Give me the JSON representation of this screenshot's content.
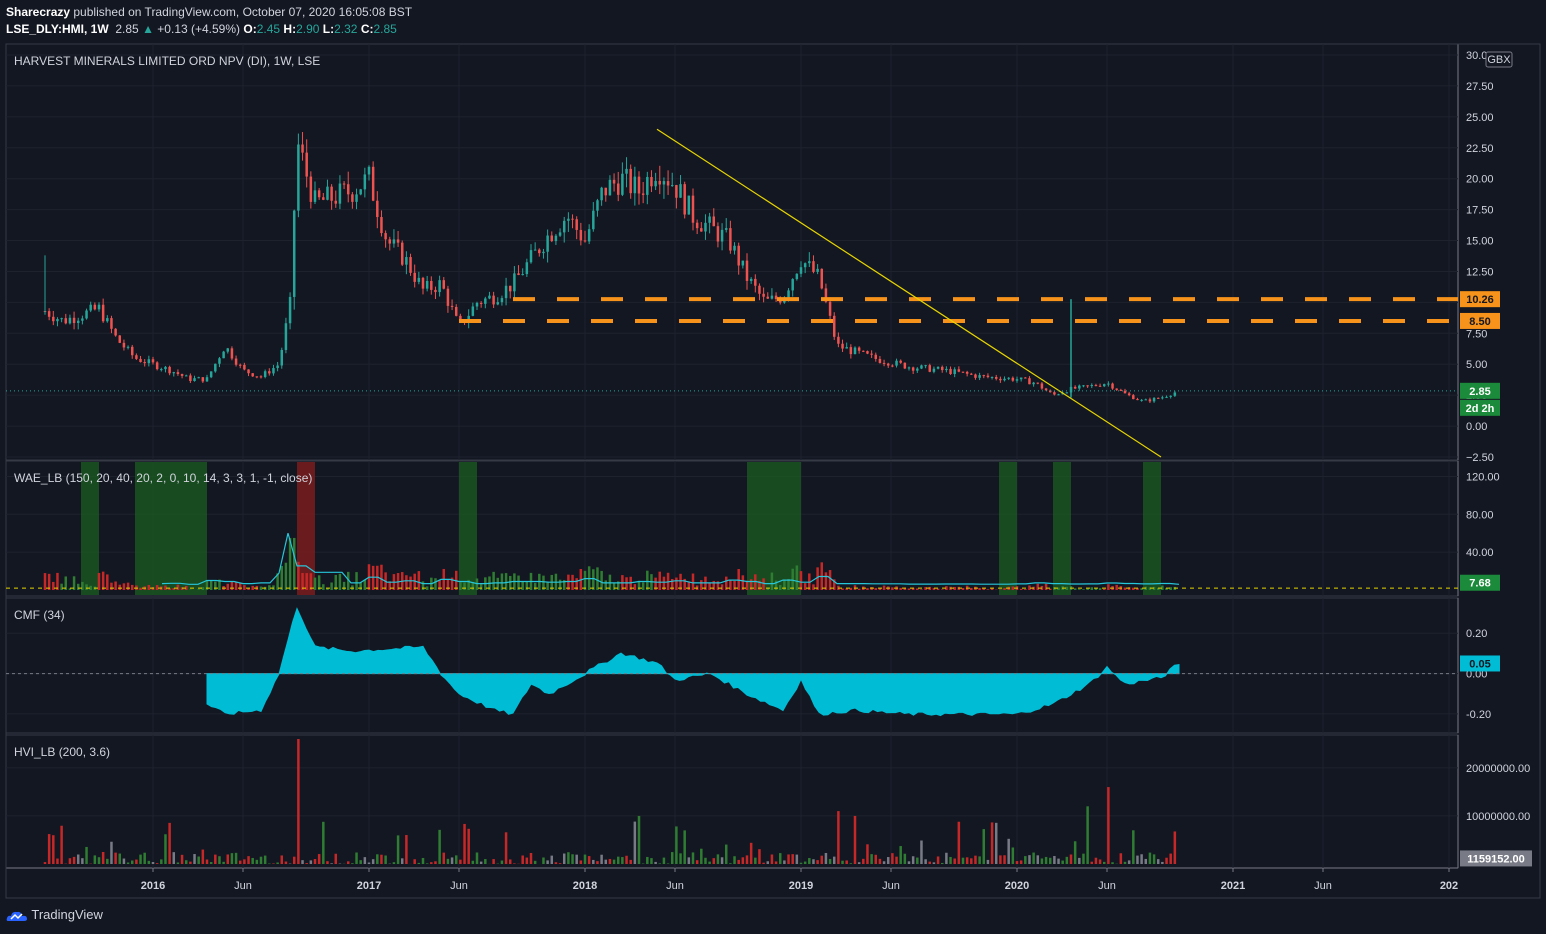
{
  "header": {
    "publisher": "Sharecrazy",
    "published_text": " published on TradingView.com, October 07, 2020 16:05:08 BST",
    "symbol": "LSE_DLY:HMI, 1W",
    "price": "2.85",
    "change": "+0.13 (+4.59%)",
    "o_label": "O:",
    "o_val": "2.45",
    "h_label": "H:",
    "h_val": "2.90",
    "l_label": "L:",
    "l_val": "2.32",
    "c_label": "C:",
    "c_val": "2.85"
  },
  "footer": {
    "brand": "TradingView"
  },
  "colors": {
    "background": "#131722",
    "up": "#26a69a",
    "down": "#ef5350",
    "trendline": "#e6d400",
    "level_line": "#f7931a",
    "cyan": "#00bcd4",
    "green_zone": "#1b5e20"
  },
  "chart_data": [
    {
      "type": "candlestick",
      "title": "HARVEST MINERALS LIMITED ORD NPV (DI), 1W, LSE",
      "currency": "GBX",
      "ylim": [
        -2.5,
        30
      ],
      "y_ticks": [
        "30.00",
        "27.50",
        "25.00",
        "22.50",
        "20.00",
        "17.50",
        "15.00",
        "12.50",
        "10.00",
        "7.50",
        "5.00",
        "2.50",
        "0.00",
        "−2.50"
      ],
      "x_ticks": [
        "2016",
        "Jun",
        "2017",
        "Jun",
        "2018",
        "Jun",
        "2019",
        "Jun",
        "2020",
        "Jun",
        "2021",
        "Jun",
        "202"
      ],
      "close_path": [
        [
          "2015-07",
          9.3
        ],
        [
          "2015-08",
          8.5
        ],
        [
          "2015-10",
          9.5
        ],
        [
          "2015-11",
          7.0
        ],
        [
          "2015-12",
          5.5
        ],
        [
          "2016-02",
          4.5
        ],
        [
          "2016-03",
          3.8
        ],
        [
          "2016-04",
          3.8
        ],
        [
          "2016-05",
          6.5
        ],
        [
          "2016-06",
          4.5
        ],
        [
          "2016-07",
          4.0
        ],
        [
          "2016-08",
          5.0
        ],
        [
          "2016-08-20",
          10.0
        ],
        [
          "2016-09",
          23.0
        ],
        [
          "2016-10",
          18.0
        ],
        [
          "2016-11",
          18.5
        ],
        [
          "2016-12",
          19.0
        ],
        [
          "2017-01",
          20.0
        ],
        [
          "2017-02",
          15.0
        ],
        [
          "2017-03",
          13.5
        ],
        [
          "2017-04",
          11.0
        ],
        [
          "2017-05",
          11.5
        ],
        [
          "2017-06",
          8.0
        ],
        [
          "2017-07",
          10.0
        ],
        [
          "2017-08",
          10.5
        ],
        [
          "2017-09",
          11.5
        ],
        [
          "2017-10",
          13.5
        ],
        [
          "2017-11",
          15.5
        ],
        [
          "2017-12",
          17.0
        ],
        [
          "2018-01",
          15.0
        ],
        [
          "2018-02",
          19.0
        ],
        [
          "2018-03",
          20.0
        ],
        [
          "2018-04",
          19.0
        ],
        [
          "2018-05",
          21.0
        ],
        [
          "2018-06",
          19.5
        ],
        [
          "2018-07",
          17.0
        ],
        [
          "2018-08",
          16.0
        ],
        [
          "2018-09",
          15.0
        ],
        [
          "2018-10",
          12.0
        ],
        [
          "2018-11",
          10.0
        ],
        [
          "2018-12",
          10.5
        ],
        [
          "2019-01",
          13.5
        ],
        [
          "2019-02",
          12.0
        ],
        [
          "2019-03",
          6.5
        ],
        [
          "2019-04",
          6.0
        ],
        [
          "2019-05",
          5.5
        ],
        [
          "2019-07",
          4.8
        ],
        [
          "2019-09",
          4.5
        ],
        [
          "2019-11",
          4.0
        ],
        [
          "2020-01",
          3.8
        ],
        [
          "2020-02",
          3.5
        ],
        [
          "2020-03",
          2.5
        ],
        [
          "2020-04",
          3.0
        ],
        [
          "2020-05",
          3.2
        ],
        [
          "2020-06",
          3.5
        ],
        [
          "2020-07",
          2.6
        ],
        [
          "2020-08",
          2.0
        ],
        [
          "2020-09",
          2.3
        ],
        [
          "2020-10",
          2.85
        ]
      ],
      "horizontal_levels": [
        {
          "label": "10.26",
          "value": 10.26
        },
        {
          "label": "8.50",
          "value": 8.5
        }
      ],
      "trendline": [
        [
          "2018-05",
          24.0
        ],
        [
          "2020-09",
          -2.5
        ]
      ],
      "spike": {
        "date": "2020-04",
        "high": 10.26,
        "low": 2.3
      },
      "last_price_label": "2.85",
      "countdown_label": "2d 2h"
    },
    {
      "type": "histogram",
      "title": "WAE_LB (150, 20, 40, 20, 2, 0, 10, 14, 3, 3, 1, -1, close)",
      "ylim": [
        0,
        130
      ],
      "y_ticks": [
        "120.00",
        "80.00",
        "40.00"
      ],
      "last_value_label": "7.68",
      "green_zones": [
        [
          "2015-09",
          "2015-10"
        ],
        [
          "2015-12",
          "2016-04"
        ],
        [
          "2017-06",
          "2017-07"
        ],
        [
          "2018-10",
          "2019-01"
        ],
        [
          "2019-12",
          "2020-01"
        ],
        [
          "2020-03",
          "2020-04"
        ],
        [
          "2020-08",
          "2020-09"
        ]
      ],
      "red_zone": [
        "2016-09",
        "2016-10"
      ]
    },
    {
      "type": "area",
      "title": "CMF (34)",
      "ylim": [
        -0.27,
        0.35
      ],
      "y_ticks": [
        "0.20",
        "0.00",
        "-0.20"
      ],
      "last_value_label": "0.05",
      "values": [
        [
          "2016-04",
          -0.15
        ],
        [
          "2016-05",
          -0.2
        ],
        [
          "2016-07",
          -0.18
        ],
        [
          "2016-08",
          0.0
        ],
        [
          "2016-09",
          0.33
        ],
        [
          "2016-10",
          0.13
        ],
        [
          "2016-12",
          0.11
        ],
        [
          "2017-02",
          0.12
        ],
        [
          "2017-04",
          0.13
        ],
        [
          "2017-05",
          0.0
        ],
        [
          "2017-06",
          -0.1
        ],
        [
          "2017-08",
          -0.18
        ],
        [
          "2017-09",
          -0.2
        ],
        [
          "2017-10",
          -0.05
        ],
        [
          "2017-11",
          -0.1
        ],
        [
          "2017-12",
          -0.05
        ],
        [
          "2018-02",
          0.05
        ],
        [
          "2018-03",
          0.1
        ],
        [
          "2018-05",
          0.05
        ],
        [
          "2018-06",
          -0.03
        ],
        [
          "2018-08",
          0.0
        ],
        [
          "2018-10",
          -0.1
        ],
        [
          "2018-12",
          -0.18
        ],
        [
          "2019-01",
          -0.03
        ],
        [
          "2019-02",
          -0.2
        ],
        [
          "2019-04",
          -0.18
        ],
        [
          "2019-07",
          -0.2
        ],
        [
          "2019-10",
          -0.2
        ],
        [
          "2020-01",
          -0.2
        ],
        [
          "2020-03",
          -0.15
        ],
        [
          "2020-05",
          -0.05
        ],
        [
          "2020-06",
          0.03
        ],
        [
          "2020-07",
          -0.05
        ],
        [
          "2020-09",
          -0.02
        ],
        [
          "2020-10",
          0.05
        ]
      ]
    },
    {
      "type": "bar",
      "title": "HVI_LB (200, 3.6)",
      "ylim": [
        0,
        26000000
      ],
      "y_ticks": [
        "20000000.00",
        "10000000.00"
      ],
      "last_value_label": "1159152.00",
      "notable_bars": [
        [
          "2016-09",
          26000000
        ],
        [
          "2018-04",
          10000000
        ],
        [
          "2019-03",
          11000000
        ],
        [
          "2019-04",
          10000000
        ],
        [
          "2020-06",
          16000000
        ],
        [
          "2020-05",
          12000000
        ]
      ]
    }
  ]
}
